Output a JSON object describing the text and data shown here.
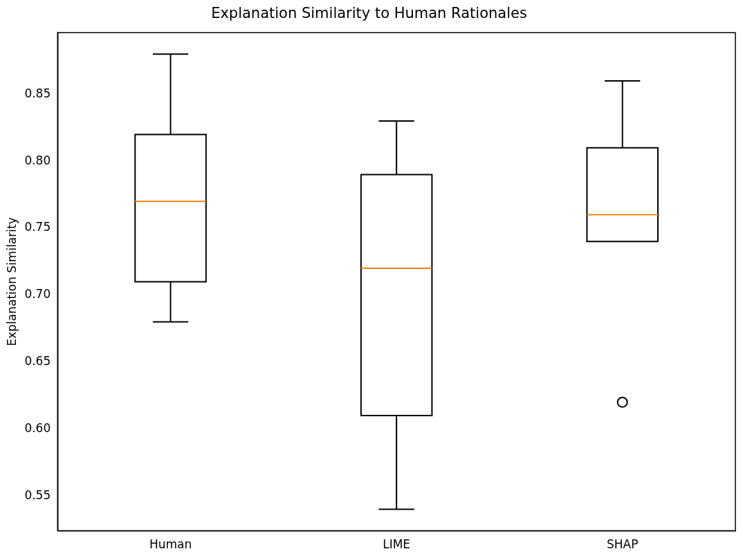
{
  "chart_data": {
    "type": "box",
    "title": "Explanation Similarity to Human Rationales",
    "ylabel": "Explanation Similarity",
    "categories": [
      "Human",
      "LIME",
      "SHAP"
    ],
    "color": "#000000",
    "boxes": [
      {
        "low": 0.68,
        "q1": 0.71,
        "median": 0.77,
        "q3": 0.82,
        "high": 0.88
      },
      {
        "low": 0.54,
        "q1": 0.61,
        "median": 0.72,
        "q3": 0.79,
        "high": 0.83
      },
      {
        "low": 0.74,
        "q1": 0.74,
        "median": 0.76,
        "q3": 0.81,
        "high": 0.86,
        "outliers": [
          0.62
        ]
      }
    ],
    "ylim": [
      0.524,
      0.896
    ],
    "yticks": [
      0.55,
      {
        "value": 0.6,
        "label": "0.60"
      },
      0.65,
      {
        "value": 0.7,
        "label": "0.70"
      },
      0.75,
      {
        "value": 0.8,
        "label": "0.80"
      },
      0.85
    ],
    "grid": false,
    "legend": false
  }
}
